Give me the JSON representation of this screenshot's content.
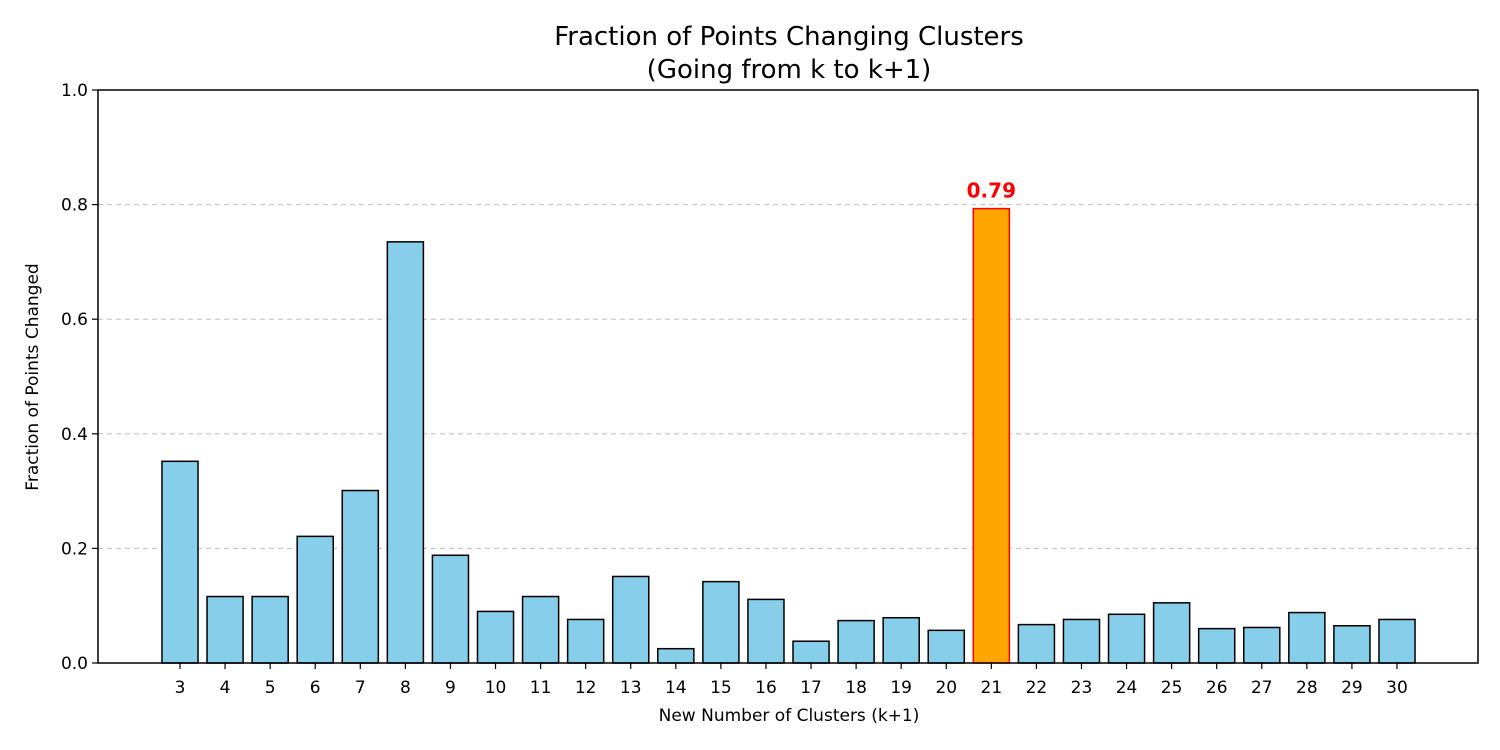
{
  "chart_data": {
    "type": "bar",
    "title": [
      "Fraction of Points Changing Clusters",
      "(Going from k to k+1)"
    ],
    "xlabel": "New Number of Clusters (k+1)",
    "ylabel": "Fraction of Points Changed",
    "ylim": [
      0,
      1.0
    ],
    "yticks": [
      "0.0",
      "0.2",
      "0.4",
      "0.6",
      "0.8",
      "1.0"
    ],
    "grid": "y-dashed",
    "categories": [
      "3",
      "4",
      "5",
      "6",
      "7",
      "8",
      "9",
      "10",
      "11",
      "12",
      "13",
      "14",
      "15",
      "16",
      "17",
      "18",
      "19",
      "20",
      "21",
      "22",
      "23",
      "24",
      "25",
      "26",
      "27",
      "28",
      "29",
      "30"
    ],
    "values": [
      0.352,
      0.116,
      0.116,
      0.221,
      0.301,
      0.735,
      0.188,
      0.09,
      0.116,
      0.076,
      0.151,
      0.025,
      0.142,
      0.111,
      0.038,
      0.074,
      0.079,
      0.057,
      0.793,
      0.067,
      0.076,
      0.085,
      0.105,
      0.06,
      0.062,
      0.088,
      0.065,
      0.076
    ],
    "highlight": {
      "category": "21",
      "label": "0.79",
      "fill": "#FFA500",
      "stroke": "#FF0000",
      "label_color": "#FF0000"
    },
    "colors": {
      "bar_fill": "#87CEEB",
      "bar_edge": "#000000"
    }
  }
}
